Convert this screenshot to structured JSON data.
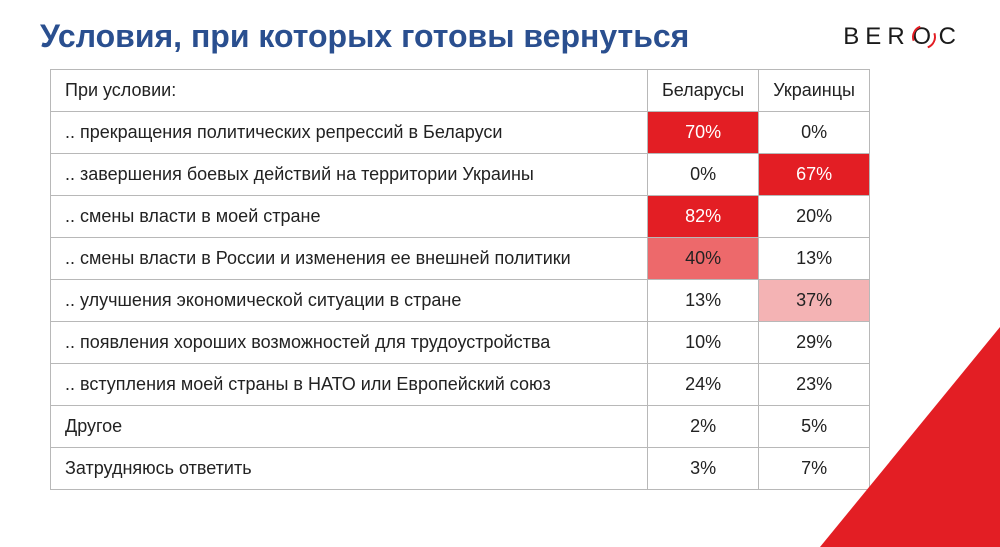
{
  "title": "Условия, при которых готовы вернуться",
  "logo": {
    "letters": [
      "B",
      "E",
      "R",
      "O",
      "C"
    ]
  },
  "table": {
    "header": {
      "condition": "При условии:",
      "col1": "Беларусы",
      "col2": "Украинцы"
    },
    "rows": [
      {
        "label": ".. прекращения политических репрессий в Беларуси",
        "v1": "70%",
        "v2": "0%",
        "hl1": "strong",
        "hl2": ""
      },
      {
        "label": ".. завершения боевых действий на территории Украины",
        "v1": "0%",
        "v2": "67%",
        "hl1": "",
        "hl2": "strong"
      },
      {
        "label": ".. смены власти в моей стране",
        "v1": "82%",
        "v2": "20%",
        "hl1": "strong",
        "hl2": ""
      },
      {
        "label": ".. смены власти в России и изменения ее внешней политики",
        "v1": "40%",
        "v2": "13%",
        "hl1": "mid",
        "hl2": ""
      },
      {
        "label": ".. улучшения экономической ситуации в стране",
        "v1": "13%",
        "v2": "37%",
        "hl1": "",
        "hl2": "light"
      },
      {
        "label": ".. появления хороших возможностей для трудоустройства",
        "v1": "10%",
        "v2": "29%",
        "hl1": "",
        "hl2": ""
      },
      {
        "label": ".. вступления моей страны в НАТО или Европейский союз",
        "v1": "24%",
        "v2": "23%",
        "hl1": "",
        "hl2": ""
      },
      {
        "label": "Другое",
        "v1": "2%",
        "v2": "5%",
        "hl1": "",
        "hl2": ""
      },
      {
        "label": "Затрудняюсь ответить",
        "v1": "3%",
        "v2": "7%",
        "hl1": "",
        "hl2": ""
      }
    ]
  },
  "colors": {
    "title": "#2a4f8f",
    "accent": "#e31e24",
    "hl_strong": "#e31e24",
    "hl_mid": "#ed696b",
    "hl_light": "#f4b3b4",
    "border": "#b8b8b8",
    "text": "#222222",
    "background": "#ffffff"
  }
}
